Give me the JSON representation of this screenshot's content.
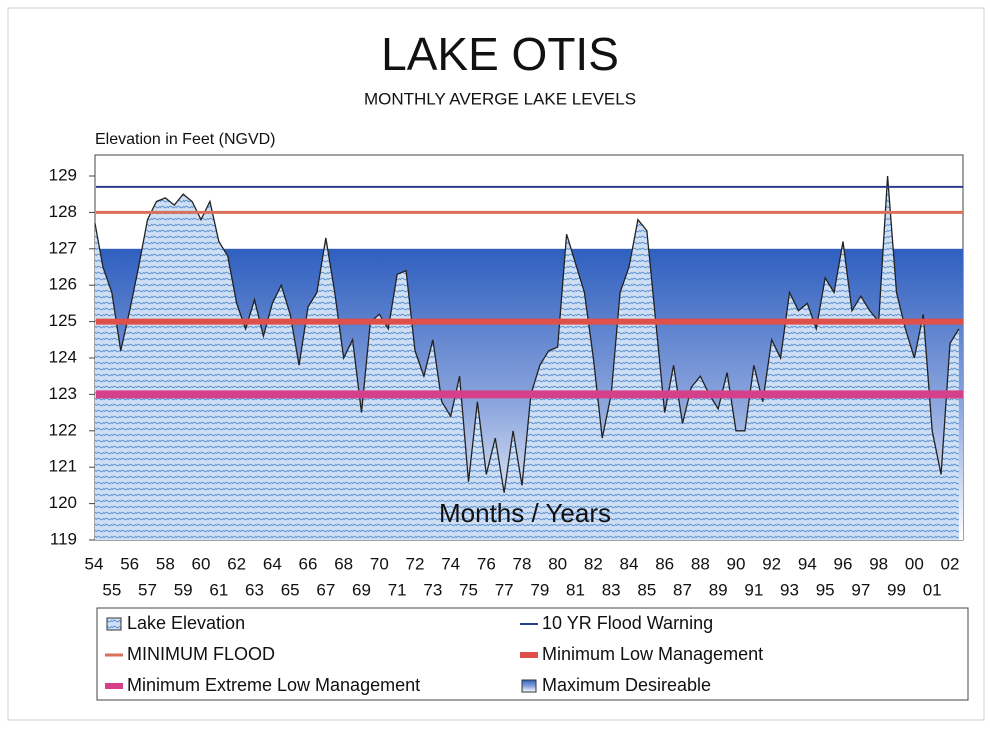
{
  "chart_data": {
    "type": "area",
    "title": "LAKE OTIS",
    "subtitle": "MONTHLY AVERGE LAKE LEVELS",
    "y_label": "Elevation in Feet (NGVD)",
    "annotation": "Months / Years",
    "categories": [
      "54",
      null,
      "55",
      null,
      "56",
      null,
      "57",
      null,
      "58",
      null,
      "59",
      null,
      "60",
      null,
      "61",
      null,
      "62",
      null,
      "63",
      null,
      "64",
      null,
      "65",
      null,
      "66",
      null,
      "67",
      null,
      "68",
      null,
      "69",
      null,
      "70",
      null,
      "71",
      null,
      "72",
      null,
      "73",
      null,
      "74",
      null,
      "75",
      null,
      "76",
      null,
      "77",
      null,
      "78",
      null,
      "79",
      null,
      "80",
      null,
      "81",
      null,
      "82",
      null,
      "83",
      null,
      "84",
      null,
      "85",
      null,
      "86",
      null,
      "87",
      null,
      "88",
      null,
      "89",
      null,
      "90",
      null,
      "91",
      null,
      "92",
      null,
      "93",
      null,
      "94",
      null,
      "95",
      null,
      "96",
      null,
      "97",
      null,
      "98",
      null,
      "99",
      null,
      "00",
      null,
      "01",
      null,
      "02",
      null
    ],
    "series": [
      {
        "name": "Lake Elevation",
        "color": "#a9c8ec",
        "values": [
          127.7,
          126.5,
          125.8,
          124.2,
          125.3,
          126.5,
          127.8,
          128.3,
          128.4,
          128.2,
          128.5,
          128.3,
          127.8,
          128.3,
          127.2,
          126.8,
          125.5,
          124.8,
          125.6,
          124.6,
          125.5,
          126.0,
          125.2,
          123.8,
          125.4,
          125.8,
          127.3,
          125.8,
          124.0,
          124.5,
          122.5,
          125.0,
          125.2,
          124.8,
          126.3,
          126.4,
          124.2,
          123.5,
          124.5,
          122.8,
          122.4,
          123.5,
          120.6,
          122.8,
          120.8,
          121.8,
          120.3,
          122.0,
          120.5,
          123.0,
          123.8,
          124.2,
          124.3,
          127.4,
          126.6,
          125.8,
          124.0,
          121.8,
          123.0,
          125.8,
          126.5,
          127.8,
          127.5,
          125.0,
          122.5,
          123.8,
          122.2,
          123.2,
          123.5,
          123.0,
          122.6,
          123.6,
          122.0,
          122.0,
          123.8,
          122.8,
          124.5,
          124.0,
          125.8,
          125.3,
          125.5,
          124.8,
          126.2,
          125.8,
          127.2,
          125.3,
          125.7,
          125.3,
          125.0,
          129.0,
          125.8,
          124.8,
          124.0,
          125.2,
          122.0,
          120.8,
          124.4,
          124.8
        ]
      }
    ],
    "reference_lines": [
      {
        "name": "10 YR Flood Warning",
        "color": "#2b3f8c",
        "value": 128.7,
        "width": 2
      },
      {
        "name": "MINIMUM FLOOD",
        "color": "#d9705a",
        "value": 128,
        "width": 3
      },
      {
        "name": "Minimum Low Management",
        "color": "#e0504a",
        "value": 125,
        "width": 6
      },
      {
        "name": "Minimum Extreme Low Management",
        "color": "#d6408a",
        "value": 123,
        "width": 8
      }
    ],
    "band": {
      "name": "Maximum Desireable",
      "color": "#3a68c4",
      "value": 127
    },
    "ylim": [
      119,
      129
    ],
    "yticks": [
      119,
      120,
      121,
      122,
      123,
      124,
      125,
      126,
      127,
      128,
      129
    ]
  }
}
